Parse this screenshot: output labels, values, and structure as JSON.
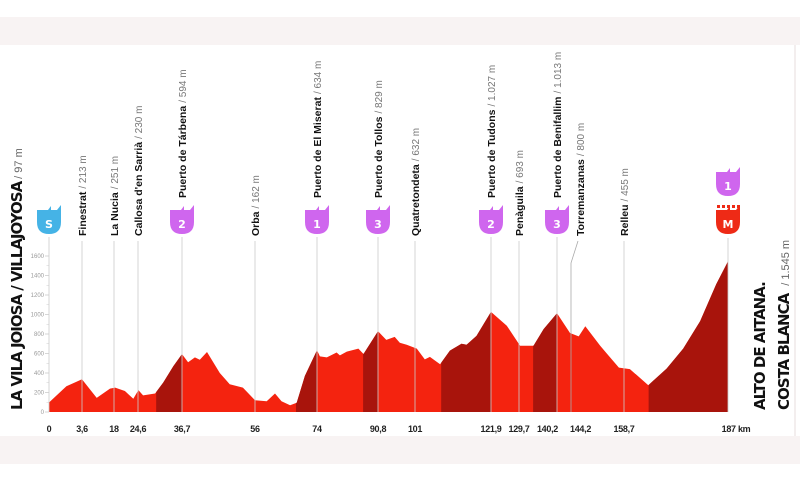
{
  "chart_data": {
    "type": "area",
    "title": "",
    "xlabel": "km",
    "ylabel": "m",
    "ylim": [
      0,
      1600
    ],
    "yticks": [
      0,
      200,
      400,
      600,
      800,
      1000,
      1200,
      1400,
      1600
    ],
    "ytick_labels": [
      "0",
      "200",
      "400",
      "600",
      "800",
      "1000",
      "1200",
      "1400",
      "1600"
    ],
    "xticks": [
      0,
      3.6,
      18,
      24.6,
      36.7,
      56,
      74,
      90.8,
      101,
      121.9,
      129.7,
      140.2,
      144.2,
      158.7,
      187
    ],
    "xtick_labels": [
      "0",
      "3,6",
      "18",
      "24,6",
      "36,7",
      "56",
      "74",
      "90,8",
      "101",
      "121,9",
      "129,7",
      "140,2",
      "144,2",
      "158,7",
      "187 km"
    ],
    "start": {
      "name": "LA VILA JOIOSA / VILLAJOYOSA",
      "altitude": "/ 97 m",
      "badge": "S"
    },
    "finish": {
      "name_line1": "ALTO DE AITANA.",
      "name_line2": "COSTA BLANCA",
      "altitude": "/ 1.545 m",
      "badge_category": "1",
      "badge_finish": "M"
    },
    "profile": [
      [
        0,
        97
      ],
      [
        1.9,
        265
      ],
      [
        3.6,
        335
      ],
      [
        10.2,
        145
      ],
      [
        16.2,
        240
      ],
      [
        18.3,
        250
      ],
      [
        21,
        215
      ],
      [
        23.3,
        135
      ],
      [
        24.7,
        225
      ],
      [
        26,
        170
      ],
      [
        29.3,
        190
      ],
      [
        31.5,
        300
      ],
      [
        34.3,
        470
      ],
      [
        36.7,
        594
      ],
      [
        38.3,
        510
      ],
      [
        40.1,
        560
      ],
      [
        41.4,
        535
      ],
      [
        43.3,
        615
      ],
      [
        46.7,
        400
      ],
      [
        49.3,
        285
      ],
      [
        52.8,
        250
      ],
      [
        56,
        120
      ],
      [
        59.4,
        110
      ],
      [
        61.8,
        190
      ],
      [
        63.7,
        110
      ],
      [
        66.2,
        70
      ],
      [
        68.1,
        95
      ],
      [
        70.5,
        370
      ],
      [
        74,
        634
      ],
      [
        74.8,
        570
      ],
      [
        76.7,
        560
      ],
      [
        79.4,
        610
      ],
      [
        80.3,
        580
      ],
      [
        82.2,
        620
      ],
      [
        85.4,
        650
      ],
      [
        86.8,
        595
      ],
      [
        90.8,
        829
      ],
      [
        93.1,
        740
      ],
      [
        95.4,
        770
      ],
      [
        96.8,
        710
      ],
      [
        98.7,
        690
      ],
      [
        101.5,
        650
      ],
      [
        103.7,
        540
      ],
      [
        105.1,
        565
      ],
      [
        107.9,
        490
      ],
      [
        110.6,
        630
      ],
      [
        113.8,
        700
      ],
      [
        115.2,
        690
      ],
      [
        117.9,
        780
      ],
      [
        121.9,
        1027
      ],
      [
        126.3,
        885
      ],
      [
        130,
        680
      ],
      [
        133.7,
        680
      ],
      [
        136.5,
        850
      ],
      [
        140.2,
        1013
      ],
      [
        143.9,
        810
      ],
      [
        146.3,
        775
      ],
      [
        148.1,
        880
      ],
      [
        152.2,
        680
      ],
      [
        154.1,
        595
      ],
      [
        157.3,
        455
      ],
      [
        160.3,
        440
      ],
      [
        165.3,
        275
      ],
      [
        170.3,
        445
      ],
      [
        174.8,
        650
      ],
      [
        179.4,
        930
      ],
      [
        183.8,
        1310
      ],
      [
        187,
        1545
      ]
    ],
    "climbs": [
      [
        29.6,
        36.7
      ],
      [
        67.9,
        74
      ],
      [
        86.7,
        90.8
      ],
      [
        108.2,
        121.9
      ],
      [
        133.6,
        140.2
      ],
      [
        165.4,
        187
      ]
    ],
    "waypoints": [
      {
        "km": 3.6,
        "name": "Finestrat",
        "altitude": "/ 213 m",
        "category": null
      },
      {
        "km": 18,
        "name": "La Nucia",
        "altitude": "/ 251 m",
        "category": null
      },
      {
        "km": 24.6,
        "name": "Callosa d'en Sarrià",
        "altitude": "/ 230 m",
        "category": null
      },
      {
        "km": 36.7,
        "name": "Puerto de Tárbena",
        "altitude": "/ 594 m",
        "category": "2"
      },
      {
        "km": 56,
        "name": "Orba",
        "altitude": "/ 162 m",
        "category": null
      },
      {
        "km": 74,
        "name": "Puerto de El Miserat",
        "altitude": "/ 634 m",
        "category": "1"
      },
      {
        "km": 90.8,
        "name": "Puerto de Tollos",
        "altitude": "/ 829 m",
        "category": "3"
      },
      {
        "km": 101,
        "name": "Quatretondeta",
        "altitude": "/ 632 m",
        "category": null
      },
      {
        "km": 121.9,
        "name": "Puerto de Tudons",
        "altitude": "/ 1.027 m",
        "category": "2"
      },
      {
        "km": 129.7,
        "name": "Penàguila",
        "altitude": "/ 693 m",
        "category": null
      },
      {
        "km": 140.2,
        "name": "Puerto de Benifallim",
        "altitude": "/ 1.013 m",
        "category": "3"
      },
      {
        "km": 144.2,
        "name": "Torremanzanas",
        "altitude": "/ 800 m",
        "category": null
      },
      {
        "km": 158.7,
        "name": "Relleu",
        "altitude": "/ 455 m",
        "category": null
      }
    ],
    "colors": {
      "fill": "#f4230f",
      "climb": "#a8140c",
      "kom": "#cf66ee",
      "start": "#45b3e6",
      "finish": "#ee2a16",
      "grid": "#cccccc"
    }
  }
}
